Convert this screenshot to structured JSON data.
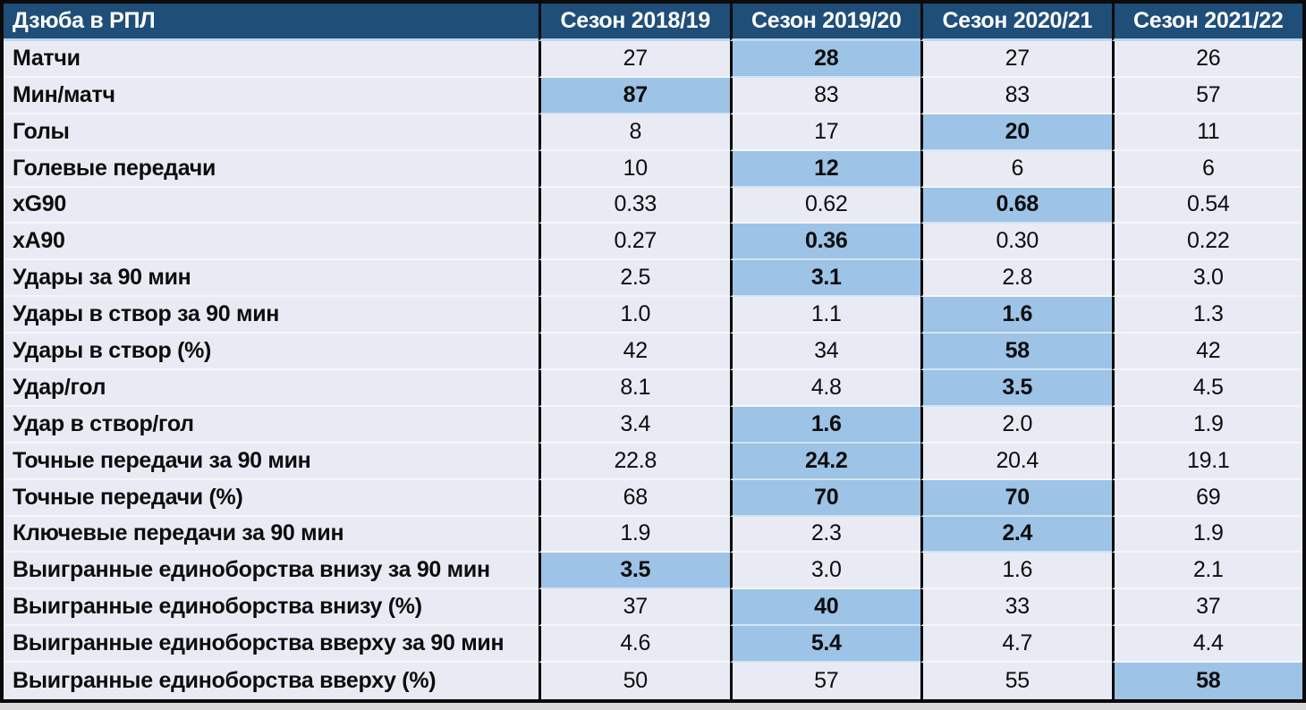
{
  "chart_data": {
    "type": "table",
    "title": "Дзюба в РПЛ",
    "columns": [
      "Дзюба в РПЛ",
      "Сезон 2018/19",
      "Сезон 2019/20",
      "Сезон 2020/21",
      "Сезон 2021/22"
    ],
    "rows": [
      {
        "label": "Матчи",
        "values": [
          "27",
          "28",
          "27",
          "26"
        ],
        "highlight": [
          1
        ]
      },
      {
        "label": "Мин/матч",
        "values": [
          "87",
          "83",
          "83",
          "57"
        ],
        "highlight": [
          0
        ]
      },
      {
        "label": "Голы",
        "values": [
          "8",
          "17",
          "20",
          "11"
        ],
        "highlight": [
          2
        ]
      },
      {
        "label": "Голевые передачи",
        "values": [
          "10",
          "12",
          "6",
          "6"
        ],
        "highlight": [
          1
        ]
      },
      {
        "label": "xG90",
        "values": [
          "0.33",
          "0.62",
          "0.68",
          "0.54"
        ],
        "highlight": [
          2
        ]
      },
      {
        "label": "xA90",
        "values": [
          "0.27",
          "0.36",
          "0.30",
          "0.22"
        ],
        "highlight": [
          1
        ]
      },
      {
        "label": "Удары за 90 мин",
        "values": [
          "2.5",
          "3.1",
          "2.8",
          "3.0"
        ],
        "highlight": [
          1
        ]
      },
      {
        "label": "Удары в створ за 90 мин",
        "values": [
          "1.0",
          "1.1",
          "1.6",
          "1.3"
        ],
        "highlight": [
          2
        ]
      },
      {
        "label": "Удары в створ (%)",
        "values": [
          "42",
          "34",
          "58",
          "42"
        ],
        "highlight": [
          2
        ]
      },
      {
        "label": "Удар/гол",
        "values": [
          "8.1",
          "4.8",
          "3.5",
          "4.5"
        ],
        "highlight": [
          2
        ]
      },
      {
        "label": "Удар в створ/гол",
        "values": [
          "3.4",
          "1.6",
          "2.0",
          "1.9"
        ],
        "highlight": [
          1
        ]
      },
      {
        "label": "Точные передачи за 90 мин",
        "values": [
          "22.8",
          "24.2",
          "20.4",
          "19.1"
        ],
        "highlight": [
          1
        ]
      },
      {
        "label": "Точные передачи (%)",
        "values": [
          "68",
          "70",
          "70",
          "69"
        ],
        "highlight": [
          1,
          2
        ]
      },
      {
        "label": "Ключевые передачи за 90 мин",
        "values": [
          "1.9",
          "2.3",
          "2.4",
          "1.9"
        ],
        "highlight": [
          2
        ]
      },
      {
        "label": "Выигранные единоборства внизу за 90 мин",
        "values": [
          "3.5",
          "3.0",
          "1.6",
          "2.1"
        ],
        "highlight": [
          0
        ]
      },
      {
        "label": "Выигранные единоборства внизу (%)",
        "values": [
          "37",
          "40",
          "33",
          "37"
        ],
        "highlight": [
          1
        ]
      },
      {
        "label": "Выигранные единоборства вверху за 90 мин",
        "values": [
          "4.6",
          "5.4",
          "4.7",
          "4.4"
        ],
        "highlight": [
          1
        ]
      },
      {
        "label": "Выигранные единоборства вверху (%)",
        "values": [
          "50",
          "57",
          "55",
          "58"
        ],
        "highlight": [
          3
        ]
      }
    ],
    "legend_position": "none",
    "grid": "column separators black, light separator under header"
  },
  "colors": {
    "header_bg": "#1F4E79",
    "header_text": "#FFFFFF",
    "body_bg": "#E9EBF4",
    "highlight_bg": "#9DC3E6",
    "column_border": "#0A0A0A",
    "header_underline": "#BDD7EE",
    "page_bg": "#D9D9D9",
    "body_text": "#0D0D0D"
  }
}
